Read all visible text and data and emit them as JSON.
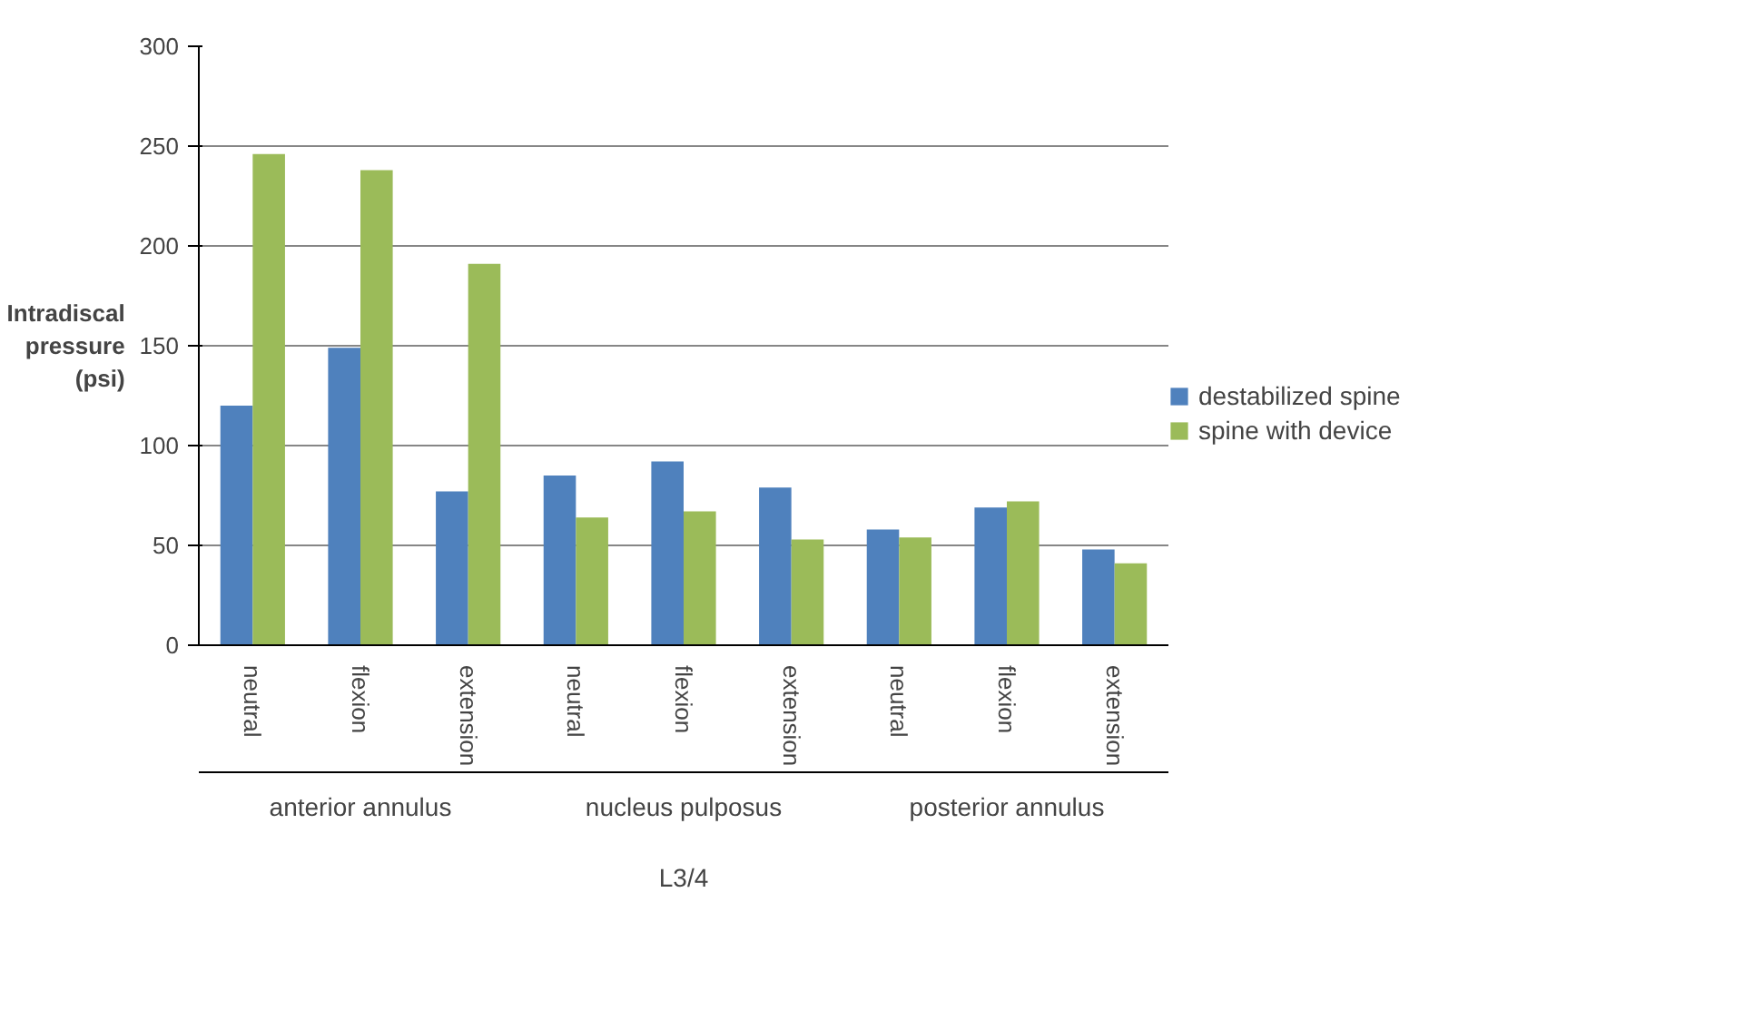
{
  "chart_data": {
    "type": "bar",
    "categories": [
      "neutral",
      "flexion",
      "extension",
      "neutral",
      "flexion",
      "extension",
      "neutral",
      "flexion",
      "extension"
    ],
    "series": [
      {
        "name": "destabilized spine",
        "color": "#4f81bd",
        "values": [
          120,
          149,
          77,
          85,
          92,
          79,
          58,
          69,
          48
        ]
      },
      {
        "name": "spine with device",
        "color": "#9bbb59",
        "values": [
          246,
          238,
          191,
          64,
          67,
          53,
          54,
          72,
          41
        ]
      }
    ],
    "annotations": [
      "anterior annulus",
      "nucleus pulposus",
      "posterior annulus"
    ],
    "xlabel": "L3/4",
    "ylabel": "Intradiscal pressure (psi)",
    "ylim": [
      0,
      300
    ],
    "yticks": [
      0,
      50,
      100,
      150,
      200,
      250,
      300
    ],
    "grid": "y",
    "legend": "right"
  }
}
